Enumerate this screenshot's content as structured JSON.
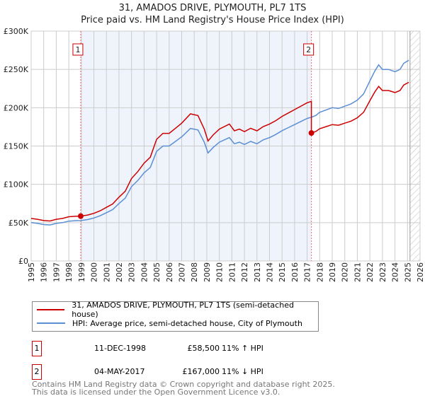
{
  "header": {
    "title": "31, AMADOS DRIVE, PLYMOUTH, PL7 1TS",
    "subtitle": "Price paid vs. HM Land Registry's House Price Index (HPI)"
  },
  "chart_data": {
    "type": "line",
    "title": "31, AMADOS DRIVE, PLYMOUTH, PL7 1TS",
    "subtitle": "Price paid vs. HM Land Registry's House Price Index (HPI)",
    "xlim": [
      1995,
      2026
    ],
    "ylim": [
      0,
      300000
    ],
    "y_ticks": [
      {
        "v": 0,
        "label": "£0"
      },
      {
        "v": 50000,
        "label": "£50K"
      },
      {
        "v": 100000,
        "label": "£100K"
      },
      {
        "v": 150000,
        "label": "£150K"
      },
      {
        "v": 200000,
        "label": "£200K"
      },
      {
        "v": 250000,
        "label": "£250K"
      },
      {
        "v": 300000,
        "label": "£300K"
      }
    ],
    "x_ticks": [
      "1995",
      "1996",
      "1997",
      "1998",
      "1999",
      "2000",
      "2001",
      "2002",
      "2003",
      "2004",
      "2005",
      "2006",
      "2007",
      "2008",
      "2009",
      "2010",
      "2011",
      "2012",
      "2013",
      "2014",
      "2015",
      "2016",
      "2017",
      "2018",
      "2019",
      "2020",
      "2021",
      "2022",
      "2023",
      "2024",
      "2025",
      "2026"
    ],
    "grid": true,
    "shaded_range": [
      1998.95,
      2017.34
    ],
    "forecast_hatch_from": 2025.2,
    "colors": {
      "property": "#cc0000",
      "hpi": "#5b8fd4",
      "shade": "#eef3fc"
    },
    "hpi_series": [
      [
        1995,
        50000
      ],
      [
        1995.5,
        49000
      ],
      [
        1996,
        47500
      ],
      [
        1996.5,
        47000
      ],
      [
        1997,
        49000
      ],
      [
        1997.5,
        50000
      ],
      [
        1998,
        52000
      ],
      [
        1998.5,
        52500
      ],
      [
        1998.95,
        52700
      ],
      [
        1999.5,
        54000
      ],
      [
        2000,
        56000
      ],
      [
        2000.5,
        59000
      ],
      [
        2001,
        63000
      ],
      [
        2001.5,
        67000
      ],
      [
        2002,
        75000
      ],
      [
        2002.5,
        82000
      ],
      [
        2003,
        97000
      ],
      [
        2003.5,
        105000
      ],
      [
        2004,
        115000
      ],
      [
        2004.5,
        122000
      ],
      [
        2005,
        143000
      ],
      [
        2005.5,
        150000
      ],
      [
        2006,
        150000
      ],
      [
        2006.5,
        156000
      ],
      [
        2007,
        162000
      ],
      [
        2007.7,
        173000
      ],
      [
        2008.3,
        171000
      ],
      [
        2008.8,
        155000
      ],
      [
        2009.1,
        141000
      ],
      [
        2009.5,
        148000
      ],
      [
        2010,
        155000
      ],
      [
        2010.8,
        161000
      ],
      [
        2011.2,
        153000
      ],
      [
        2011.6,
        155000
      ],
      [
        2012,
        152000
      ],
      [
        2012.5,
        156000
      ],
      [
        2013,
        153000
      ],
      [
        2013.5,
        158000
      ],
      [
        2014,
        161000
      ],
      [
        2014.5,
        165000
      ],
      [
        2015,
        170000
      ],
      [
        2015.5,
        174000
      ],
      [
        2016,
        178000
      ],
      [
        2016.5,
        182000
      ],
      [
        2017,
        186000
      ],
      [
        2017.34,
        187600
      ],
      [
        2017.7,
        190000
      ],
      [
        2018,
        194000
      ],
      [
        2018.5,
        197000
      ],
      [
        2019,
        200000
      ],
      [
        2019.5,
        199000
      ],
      [
        2020,
        202000
      ],
      [
        2020.5,
        205000
      ],
      [
        2021,
        210000
      ],
      [
        2021.5,
        218000
      ],
      [
        2022,
        235000
      ],
      [
        2022.4,
        248000
      ],
      [
        2022.7,
        256000
      ],
      [
        2023,
        250000
      ],
      [
        2023.5,
        250000
      ],
      [
        2024,
        247000
      ],
      [
        2024.4,
        250000
      ],
      [
        2024.7,
        258000
      ],
      [
        2025.1,
        262000
      ]
    ],
    "property_series_ratio": {
      "before_sale2": 1.11,
      "after_sale2": 0.89
    },
    "sales": [
      {
        "n": "1",
        "x": 1998.95,
        "y": 58500
      },
      {
        "n": "2",
        "x": 2017.34,
        "y": 167000
      }
    ],
    "legend": [
      "31, AMADOS DRIVE, PLYMOUTH, PL7 1TS (semi-detached house)",
      "HPI: Average price, semi-detached house, City of Plymouth"
    ],
    "legend_position": "bottom"
  },
  "transactions": [
    {
      "n": "1",
      "date": "11-DEC-1998",
      "price": "£58,500",
      "hpi": "11% ↑ HPI"
    },
    {
      "n": "2",
      "date": "04-MAY-2017",
      "price": "£167,000",
      "hpi": "11% ↓ HPI"
    }
  ],
  "footer": {
    "line1": "Contains HM Land Registry data © Crown copyright and database right 2025.",
    "line2": "This data is licensed under the Open Government Licence v3.0."
  }
}
